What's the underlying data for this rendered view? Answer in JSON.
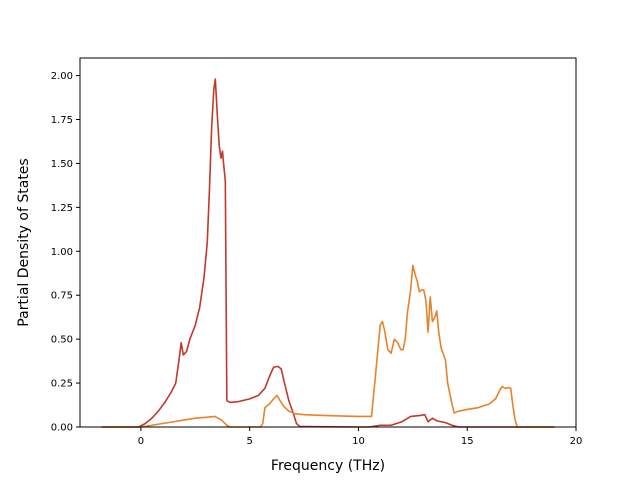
{
  "chart_data": {
    "type": "line",
    "title": "",
    "xlabel": "Frequency (THz)",
    "ylabel": "Partial Density of States",
    "xlim": [
      -2.8,
      20.0
    ],
    "ylim": [
      0.0,
      2.1
    ],
    "xticks": [
      0,
      5,
      10,
      15,
      20
    ],
    "xtick_labels": [
      "0",
      "5",
      "10",
      "15",
      "20"
    ],
    "yticks": [
      0.0,
      0.25,
      0.5,
      0.75,
      1.0,
      1.25,
      1.5,
      1.75,
      2.0
    ],
    "ytick_labels": [
      "0.00",
      "0.25",
      "0.50",
      "0.75",
      "1.00",
      "1.25",
      "1.50",
      "1.75",
      "2.00"
    ],
    "grid": false,
    "legend": "none",
    "series": [
      {
        "color": "#c0392b",
        "points": [
          [
            -1.8,
            0.0
          ],
          [
            -0.1,
            0.0
          ],
          [
            0.2,
            0.02
          ],
          [
            0.5,
            0.05
          ],
          [
            0.8,
            0.09
          ],
          [
            1.1,
            0.14
          ],
          [
            1.4,
            0.2
          ],
          [
            1.6,
            0.25
          ],
          [
            1.75,
            0.38
          ],
          [
            1.85,
            0.48
          ],
          [
            1.95,
            0.41
          ],
          [
            2.1,
            0.43
          ],
          [
            2.25,
            0.5
          ],
          [
            2.5,
            0.58
          ],
          [
            2.7,
            0.68
          ],
          [
            2.9,
            0.85
          ],
          [
            3.05,
            1.05
          ],
          [
            3.15,
            1.35
          ],
          [
            3.25,
            1.7
          ],
          [
            3.35,
            1.92
          ],
          [
            3.42,
            1.98
          ],
          [
            3.5,
            1.8
          ],
          [
            3.6,
            1.6
          ],
          [
            3.68,
            1.53
          ],
          [
            3.75,
            1.57
          ],
          [
            3.8,
            1.5
          ],
          [
            3.88,
            1.4
          ],
          [
            3.95,
            0.15
          ],
          [
            4.1,
            0.14
          ],
          [
            4.5,
            0.145
          ],
          [
            5.0,
            0.16
          ],
          [
            5.4,
            0.18
          ],
          [
            5.7,
            0.22
          ],
          [
            5.95,
            0.3
          ],
          [
            6.1,
            0.34
          ],
          [
            6.3,
            0.345
          ],
          [
            6.45,
            0.33
          ],
          [
            6.6,
            0.25
          ],
          [
            6.8,
            0.15
          ],
          [
            7.0,
            0.08
          ],
          [
            7.15,
            0.02
          ],
          [
            7.3,
            0.003
          ],
          [
            8.0,
            0.002
          ],
          [
            10.0,
            0.0
          ],
          [
            10.5,
            0.0
          ],
          [
            11.0,
            0.01
          ],
          [
            11.5,
            0.01
          ],
          [
            12.0,
            0.03
          ],
          [
            12.4,
            0.06
          ],
          [
            12.8,
            0.065
          ],
          [
            13.05,
            0.07
          ],
          [
            13.2,
            0.03
          ],
          [
            13.4,
            0.05
          ],
          [
            13.6,
            0.035
          ],
          [
            14.0,
            0.025
          ],
          [
            14.3,
            0.01
          ],
          [
            14.6,
            0.0
          ],
          [
            19.0,
            0.0
          ]
        ]
      },
      {
        "color": "#e8822a",
        "points": [
          [
            -1.8,
            0.0
          ],
          [
            0.0,
            0.0
          ],
          [
            0.5,
            0.01
          ],
          [
            1.0,
            0.02
          ],
          [
            1.5,
            0.03
          ],
          [
            2.0,
            0.04
          ],
          [
            2.5,
            0.05
          ],
          [
            3.0,
            0.055
          ],
          [
            3.4,
            0.06
          ],
          [
            3.7,
            0.04
          ],
          [
            3.95,
            0.01
          ],
          [
            4.1,
            0.0
          ],
          [
            5.5,
            0.0
          ],
          [
            5.6,
            0.02
          ],
          [
            5.7,
            0.11
          ],
          [
            5.9,
            0.13
          ],
          [
            6.1,
            0.16
          ],
          [
            6.25,
            0.18
          ],
          [
            6.4,
            0.15
          ],
          [
            6.55,
            0.12
          ],
          [
            6.8,
            0.09
          ],
          [
            7.1,
            0.075
          ],
          [
            7.5,
            0.07
          ],
          [
            8.5,
            0.065
          ],
          [
            10.0,
            0.06
          ],
          [
            10.6,
            0.06
          ],
          [
            10.75,
            0.25
          ],
          [
            10.9,
            0.45
          ],
          [
            11.0,
            0.58
          ],
          [
            11.1,
            0.6
          ],
          [
            11.2,
            0.55
          ],
          [
            11.35,
            0.44
          ],
          [
            11.5,
            0.42
          ],
          [
            11.65,
            0.5
          ],
          [
            11.8,
            0.48
          ],
          [
            11.95,
            0.44
          ],
          [
            12.05,
            0.44
          ],
          [
            12.15,
            0.5
          ],
          [
            12.25,
            0.65
          ],
          [
            12.4,
            0.78
          ],
          [
            12.5,
            0.92
          ],
          [
            12.6,
            0.87
          ],
          [
            12.7,
            0.83
          ],
          [
            12.8,
            0.77
          ],
          [
            12.9,
            0.78
          ],
          [
            13.0,
            0.78
          ],
          [
            13.1,
            0.72
          ],
          [
            13.2,
            0.54
          ],
          [
            13.3,
            0.74
          ],
          [
            13.4,
            0.6
          ],
          [
            13.5,
            0.62
          ],
          [
            13.6,
            0.66
          ],
          [
            13.7,
            0.53
          ],
          [
            13.8,
            0.45
          ],
          [
            14.0,
            0.38
          ],
          [
            14.1,
            0.25
          ],
          [
            14.3,
            0.13
          ],
          [
            14.4,
            0.08
          ],
          [
            14.6,
            0.09
          ],
          [
            15.0,
            0.1
          ],
          [
            15.5,
            0.11
          ],
          [
            16.0,
            0.13
          ],
          [
            16.3,
            0.16
          ],
          [
            16.5,
            0.21
          ],
          [
            16.6,
            0.23
          ],
          [
            16.75,
            0.22
          ],
          [
            16.9,
            0.225
          ],
          [
            17.0,
            0.22
          ],
          [
            17.1,
            0.12
          ],
          [
            17.2,
            0.04
          ],
          [
            17.3,
            0.0
          ],
          [
            19.0,
            0.0
          ]
        ]
      }
    ]
  }
}
